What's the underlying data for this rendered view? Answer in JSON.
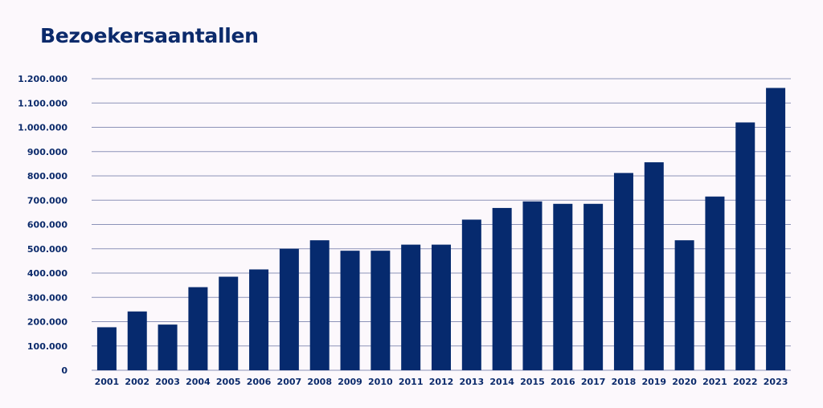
{
  "chart_data": {
    "type": "bar",
    "title": "Bezoekersaantallen",
    "xlabel": "",
    "ylabel": "",
    "categories": [
      "2001",
      "2002",
      "2003",
      "2004",
      "2005",
      "2006",
      "2007",
      "2008",
      "2009",
      "2010",
      "2011",
      "2012",
      "2013",
      "2014",
      "2015",
      "2016",
      "2017",
      "2018",
      "2019",
      "2020",
      "2021",
      "2022",
      "2023"
    ],
    "values": [
      177000,
      242000,
      188000,
      342000,
      385000,
      415000,
      500000,
      535000,
      492000,
      492000,
      517000,
      517000,
      620000,
      668000,
      695000,
      685000,
      685000,
      812000,
      856000,
      535000,
      715000,
      1020000,
      1162000
    ],
    "ylim": [
      0,
      1200000
    ],
    "yticks": [
      0,
      100000,
      200000,
      300000,
      400000,
      500000,
      600000,
      700000,
      800000,
      900000,
      1000000,
      1100000,
      1200000
    ],
    "ytick_labels": [
      "0",
      "100.000",
      "200.000",
      "300.000",
      "400.000",
      "500.000",
      "600.000",
      "700.000",
      "800.000",
      "900.000",
      "1.000.000",
      "1.100.000",
      "1.200.000"
    ],
    "grid": true,
    "bar_color": "#062a6e",
    "grid_color": "#8c93b8",
    "text_color": "#0b2a6b"
  }
}
